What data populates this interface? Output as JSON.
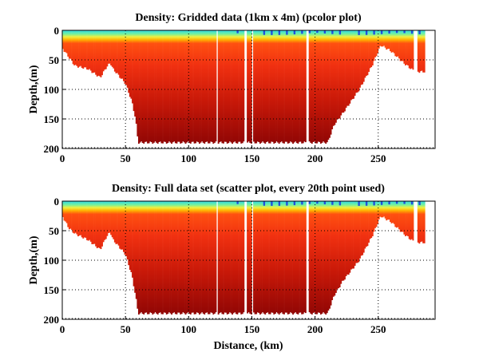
{
  "chart_data": [
    {
      "type": "heatmap",
      "title": "Density: Gridded data (1km x 4m) (pcolor plot)",
      "xlabel": "",
      "ylabel": "Depth,(m)",
      "xlim": [
        0,
        295
      ],
      "ylim": [
        200,
        0
      ],
      "xticks": [
        0,
        50,
        100,
        150,
        200,
        250
      ],
      "yticks": [
        0,
        50,
        100,
        150,
        200
      ],
      "grid": true,
      "colormap": "jet",
      "bottom_profile": {
        "distance_km": [
          0,
          5,
          10,
          20,
          30,
          35,
          38,
          40,
          50,
          55,
          58,
          60,
          210,
          215,
          222,
          235,
          245,
          252,
          260,
          270,
          277,
          282,
          287
        ],
        "depth_m": [
          30,
          45,
          60,
          65,
          80,
          62,
          55,
          65,
          90,
          120,
          150,
          190,
          190,
          160,
          140,
          100,
          60,
          25,
          35,
          55,
          67,
          70,
          70
        ]
      },
      "data_gaps_km": [
        [
          122,
          123
        ],
        [
          144,
          146
        ],
        [
          150,
          151
        ],
        [
          193,
          195
        ],
        [
          278,
          281
        ]
      ]
    },
    {
      "type": "scatter",
      "title": "Density: Full data set (scatter plot, every 20th point used)",
      "xlabel": "Distance, (km)",
      "ylabel": "Depth,(m)",
      "xlim": [
        0,
        295
      ],
      "ylim": [
        200,
        0
      ],
      "xticks": [
        0,
        50,
        100,
        150,
        200,
        250
      ],
      "yticks": [
        0,
        50,
        100,
        150,
        200
      ],
      "grid": true,
      "colormap": "jet",
      "bottom_profile": {
        "distance_km": [
          0,
          5,
          10,
          20,
          30,
          35,
          38,
          40,
          50,
          55,
          58,
          60,
          210,
          215,
          222,
          235,
          245,
          252,
          260,
          270,
          277,
          282,
          287
        ],
        "depth_m": [
          25,
          45,
          55,
          65,
          82,
          60,
          52,
          65,
          90,
          125,
          160,
          190,
          190,
          160,
          135,
          100,
          60,
          25,
          35,
          55,
          67,
          70,
          70
        ]
      },
      "data_gaps_km": [
        [
          122,
          123
        ],
        [
          144,
          146
        ],
        [
          150,
          151
        ],
        [
          193,
          195
        ],
        [
          278,
          281
        ]
      ]
    }
  ]
}
